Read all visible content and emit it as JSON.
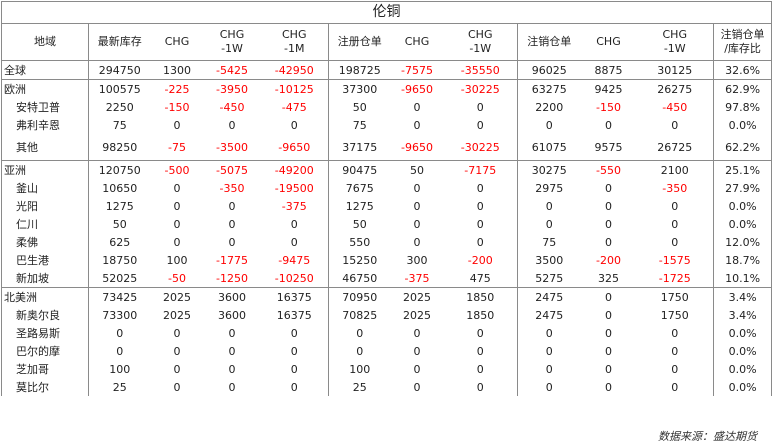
{
  "title": "伦铜",
  "headers": [
    "地域",
    "最新库存",
    "CHG",
    "CHG\n-1W",
    "CHG\n-1M",
    "注册仓单",
    "CHG",
    "CHG\n-1W",
    "注销仓单",
    "CHG",
    "CHG\n-1W",
    "注销仓单\n/库存比"
  ],
  "rows": [
    {
      "region": "全球",
      "level": 0,
      "values": [
        "294750",
        "1300",
        "-5425",
        "-42950",
        "198725",
        "-7575",
        "-35550",
        "96025",
        "8875",
        "30125",
        "32.6%"
      ]
    },
    {
      "region": "欧洲",
      "level": 0,
      "values": [
        "100575",
        "-225",
        "-3950",
        "-10125",
        "37300",
        "-9650",
        "-30225",
        "63275",
        "9425",
        "26275",
        "62.9%"
      ]
    },
    {
      "region": "安特卫普",
      "level": 1,
      "values": [
        "2250",
        "-150",
        "-450",
        "-475",
        "50",
        "0",
        "0",
        "2200",
        "-150",
        "-450",
        "97.8%"
      ]
    },
    {
      "region": "弗利辛恩",
      "level": 1,
      "values": [
        "75",
        "0",
        "0",
        "0",
        "75",
        "0",
        "0",
        "0",
        "0",
        "0",
        "0.0%"
      ]
    },
    {
      "region": "其他",
      "level": 1,
      "values": [
        "98250",
        "-75",
        "-3500",
        "-9650",
        "37175",
        "-9650",
        "-30225",
        "61075",
        "9575",
        "26725",
        "62.2%"
      ]
    },
    {
      "region": "亚洲",
      "level": 0,
      "values": [
        "120750",
        "-500",
        "-5075",
        "-49200",
        "90475",
        "50",
        "-7175",
        "30275",
        "-550",
        "2100",
        "25.1%"
      ]
    },
    {
      "region": "釜山",
      "level": 1,
      "values": [
        "10650",
        "0",
        "-350",
        "-19500",
        "7675",
        "0",
        "0",
        "2975",
        "0",
        "-350",
        "27.9%"
      ]
    },
    {
      "region": "光阳",
      "level": 1,
      "values": [
        "1275",
        "0",
        "0",
        "-375",
        "1275",
        "0",
        "0",
        "0",
        "0",
        "0",
        "0.0%"
      ]
    },
    {
      "region": "仁川",
      "level": 1,
      "values": [
        "50",
        "0",
        "0",
        "0",
        "50",
        "0",
        "0",
        "0",
        "0",
        "0",
        "0.0%"
      ]
    },
    {
      "region": "柔佛",
      "level": 1,
      "values": [
        "625",
        "0",
        "0",
        "0",
        "550",
        "0",
        "0",
        "75",
        "0",
        "0",
        "12.0%"
      ]
    },
    {
      "region": "巴生港",
      "level": 1,
      "values": [
        "18750",
        "100",
        "-1775",
        "-9475",
        "15250",
        "300",
        "-200",
        "3500",
        "-200",
        "-1575",
        "18.7%"
      ]
    },
    {
      "region": "新加坡",
      "level": 1,
      "values": [
        "52025",
        "-50",
        "-1250",
        "-10250",
        "46750",
        "-375",
        "475",
        "5275",
        "325",
        "-1725",
        "10.1%"
      ]
    },
    {
      "region": "北美洲",
      "level": 0,
      "values": [
        "73425",
        "2025",
        "3600",
        "16375",
        "70950",
        "2025",
        "1850",
        "2475",
        "0",
        "1750",
        "3.4%"
      ]
    },
    {
      "region": "新奥尔良",
      "level": 1,
      "values": [
        "73300",
        "2025",
        "3600",
        "16375",
        "70825",
        "2025",
        "1850",
        "2475",
        "0",
        "1750",
        "3.4%"
      ]
    },
    {
      "region": "圣路易斯",
      "level": 1,
      "values": [
        "0",
        "0",
        "0",
        "0",
        "0",
        "0",
        "0",
        "0",
        "0",
        "0",
        "0.0%"
      ]
    },
    {
      "region": "巴尔的摩",
      "level": 1,
      "values": [
        "0",
        "0",
        "0",
        "0",
        "0",
        "0",
        "0",
        "0",
        "0",
        "0",
        "0.0%"
      ]
    },
    {
      "region": "芝加哥",
      "level": 1,
      "values": [
        "100",
        "0",
        "0",
        "0",
        "100",
        "0",
        "0",
        "0",
        "0",
        "0",
        "0.0%"
      ]
    },
    {
      "region": "莫比尔",
      "level": 1,
      "values": [
        "25",
        "0",
        "0",
        "0",
        "25",
        "0",
        "0",
        "0",
        "0",
        "0",
        "0.0%"
      ]
    }
  ],
  "source": "数据来源：盛达期货"
}
